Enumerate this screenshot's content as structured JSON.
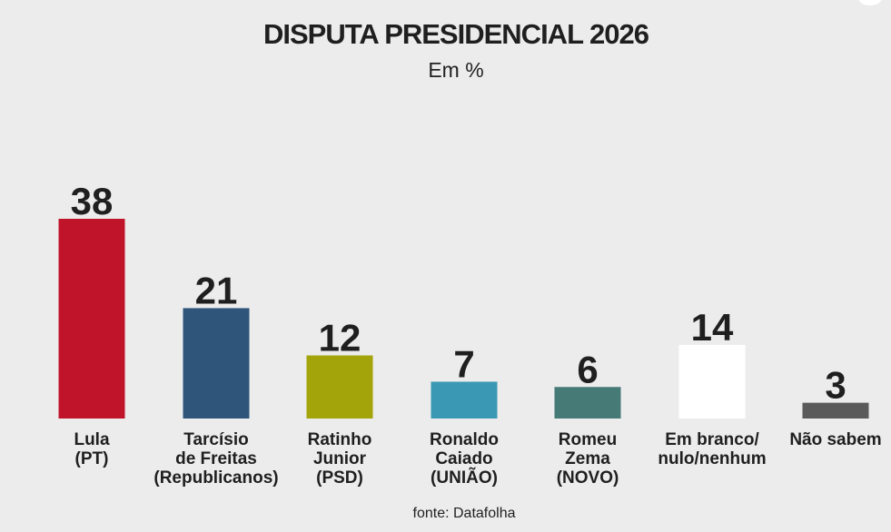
{
  "title": "DISPUTA PRESIDENCIAL 2026",
  "subtitle": "Em %",
  "source": "fonte: Datafolha",
  "chart_data": {
    "type": "bar",
    "title": "DISPUTA PRESIDENCIAL 2026",
    "subtitle": "Em %",
    "categories": [
      [
        "Lula",
        "(PT)"
      ],
      [
        "Tarcísio",
        "de Freitas",
        "(Republicanos)"
      ],
      [
        "Ratinho",
        "Junior",
        "(PSD)"
      ],
      [
        "Ronaldo",
        "Caiado",
        "(UNIÃO)"
      ],
      [
        "Romeu",
        "Zema",
        "(NOVO)"
      ],
      [
        "Em branco/",
        "nulo/nenhum"
      ],
      [
        "Não sabem"
      ]
    ],
    "values": [
      38,
      21,
      12,
      7,
      6,
      14,
      3
    ],
    "colors": [
      "#c0142a",
      "#2f567a",
      "#a3a30a",
      "#3a98b4",
      "#457a76",
      "#ffffff",
      "#5a5a5a"
    ],
    "ylim": [
      0,
      38
    ],
    "grid": false,
    "data_labels": true
  }
}
